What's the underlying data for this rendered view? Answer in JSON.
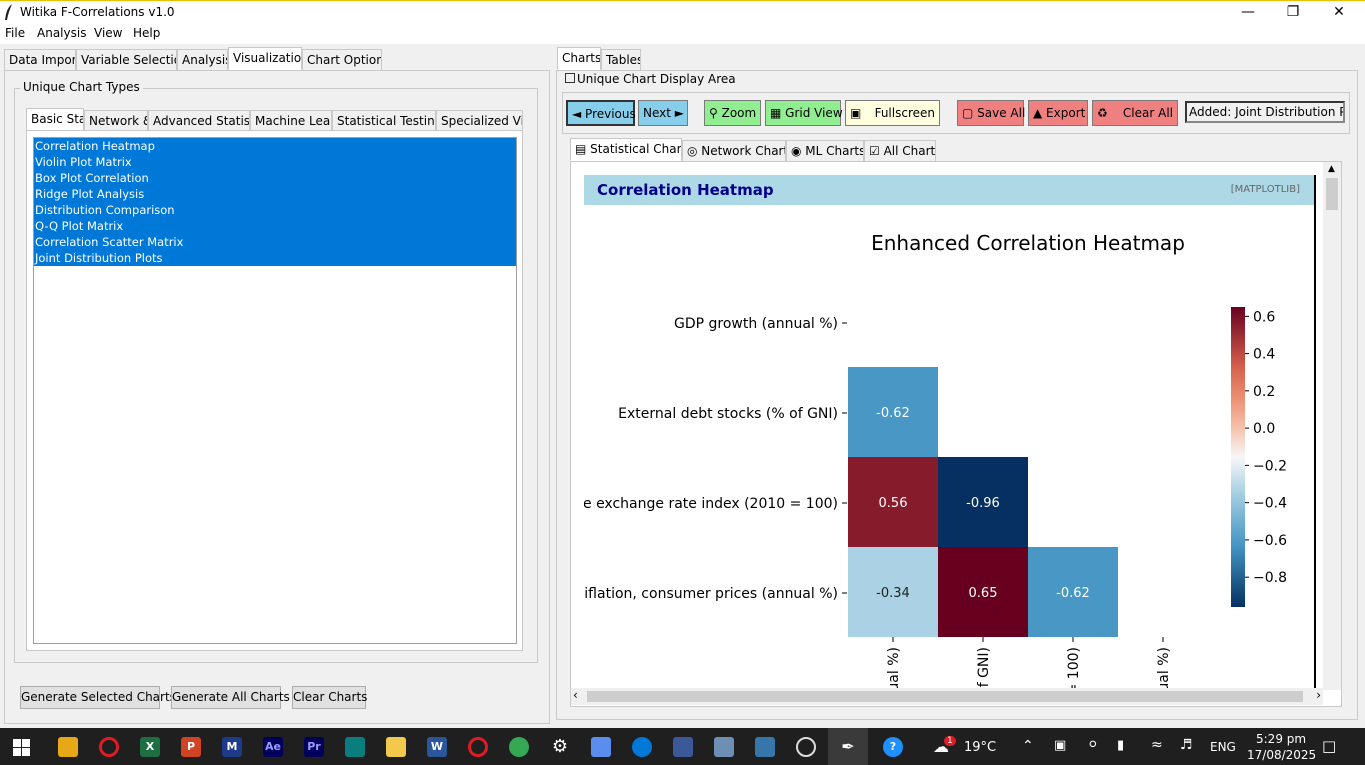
{
  "window": {
    "title": "Witika F-Correlations v1.0"
  },
  "menu": [
    "File",
    "Analysis",
    "View",
    "Help"
  ],
  "main_tabs": [
    "Data Import",
    "Variable Selection",
    "Analysis",
    "Visualization",
    "Chart Options"
  ],
  "left": {
    "group_label": "Unique Chart Types",
    "sub_tabs": [
      "Basic Stati",
      "Network &",
      "Advanced Statistic",
      "Machine Learr",
      "Statistical Testing (",
      "Specialized Visu"
    ],
    "chart_types": [
      "Correlation Heatmap",
      "Violin Plot Matrix",
      "Box Plot Correlation",
      "Ridge Plot Analysis",
      "Distribution Comparison",
      "Q-Q Plot Matrix",
      "Correlation Scatter Matrix",
      "Joint Distribution Plots"
    ],
    "buttons": {
      "generate_selected": "Generate Selected Charts",
      "generate_all": "Generate All Charts",
      "clear": "Clear Charts"
    }
  },
  "right": {
    "tabs": [
      "Charts",
      "Tables"
    ],
    "area_label": "Unique Chart Display Area",
    "toolbar": {
      "previous": "◄ Previous",
      "next": "Next ►",
      "zoom": "Zoom",
      "grid_view": "Grid View",
      "fullscreen": "Fullscreen",
      "save_all": "Save All",
      "export": "Export",
      "clear_all": "Clear All",
      "status": "Added: Joint Distribution Plot"
    },
    "chart_tabs": [
      "Statistical Charts",
      "Network Charts",
      "ML Charts",
      "All Charts"
    ],
    "chart_header": {
      "title": "Correlation Heatmap",
      "tag": "[MATPLOTLIB]"
    }
  },
  "chart_data": {
    "type": "heatmap",
    "title": "Enhanced Correlation Heatmap",
    "row_labels": [
      "GDP growth (annual %)",
      "External debt stocks (% of GNI)",
      "e exchange rate index (2010 = 100)",
      "iflation, consumer prices (annual %)"
    ],
    "col_labels": [
      "ual %)",
      "f GNI)",
      "= 100)",
      "ual %)"
    ],
    "cells": [
      {
        "row": 1,
        "col": 0,
        "value": -0.62,
        "label": "-0.62"
      },
      {
        "row": 2,
        "col": 0,
        "value": 0.56,
        "label": "0.56"
      },
      {
        "row": 2,
        "col": 1,
        "value": -0.96,
        "label": "-0.96"
      },
      {
        "row": 3,
        "col": 0,
        "value": -0.34,
        "label": "-0.34"
      },
      {
        "row": 3,
        "col": 1,
        "value": 0.65,
        "label": "0.65"
      },
      {
        "row": 3,
        "col": 2,
        "value": -0.62,
        "label": "-0.62"
      }
    ],
    "colorbar": {
      "ticks": [
        "0.6",
        "0.4",
        "0.2",
        "0.0",
        "−0.2",
        "−0.4",
        "−0.6",
        "−0.8"
      ],
      "values": [
        0.6,
        0.4,
        0.2,
        0.0,
        -0.2,
        -0.4,
        -0.6,
        -0.8
      ],
      "range": [
        -0.96,
        0.65
      ],
      "colormap": "RdBu_r"
    }
  },
  "taskbar": {
    "weather": "19°C",
    "weather_badge": "1",
    "lang": "ENG",
    "time": "5:29 pm",
    "date": "17/08/2025"
  },
  "colors": {
    "selection": "#0078d7",
    "header_bg": "#add8e6",
    "nav_btn": "#87ceeb",
    "green_btn": "#90ee90",
    "red_btn": "#f08080",
    "yellow_btn": "#ffffe0"
  }
}
